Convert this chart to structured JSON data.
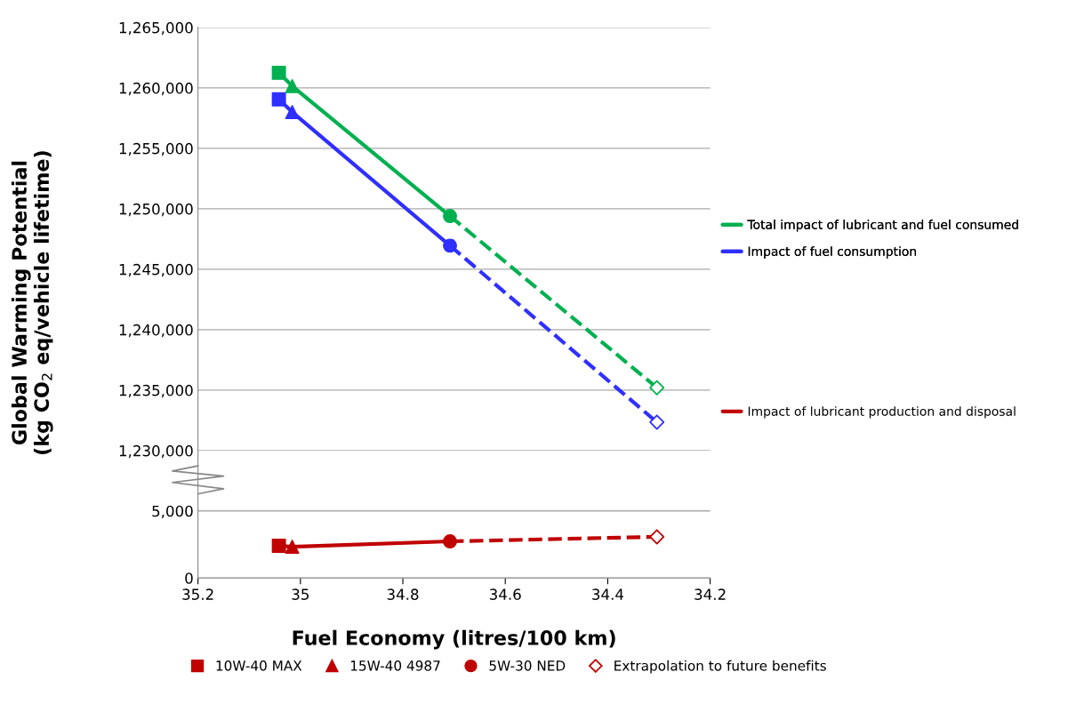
{
  "chart_data": [
    {
      "type": "line",
      "ylabel": "Global Warming Potential\n(kg CO$_{2}$ eq/vehicle lifetime)",
      "xlim": [
        35.2,
        34.2
      ],
      "xticks": [
        35.2,
        35,
        34.8,
        34.6,
        34.4,
        34.2
      ],
      "ylim": [
        1230000,
        1265000
      ],
      "yticks": [
        {
          "value": 1230000,
          "label": "1,230,000"
        },
        {
          "value": 1235000,
          "label": "1,235,000"
        },
        {
          "value": 1240000,
          "label": "1,240,000"
        },
        {
          "value": 1245000,
          "label": "1,245,000"
        },
        {
          "value": 1250000,
          "label": "1,250,000"
        },
        {
          "value": 1255000,
          "label": "1,255,000"
        },
        {
          "value": 1260000,
          "label": "1,260,000"
        },
        {
          "value": 1265000,
          "label": "1,265,000"
        }
      ],
      "tick_labels": "y",
      "grid": "y",
      "legend": "right",
      "series": [
        {
          "name": "Total impact of lubricant and fuel consumed",
          "color": "#00b050",
          "x": [
            35.042,
            35.016,
            34.708
          ],
          "values": [
            1261250,
            1260150,
            1249400
          ],
          "line_style": "solid",
          "marker": "none"
        },
        {
          "color": "#00b050",
          "x": [
            34.708,
            34.304
          ],
          "values": [
            1249400,
            1235200
          ],
          "line_style": "dashed",
          "marker": "none"
        },
        {
          "name": "Impact of fuel consumption",
          "color": "#2f2fff",
          "x": [
            35.042,
            35.016,
            34.708
          ],
          "values": [
            1259050,
            1258000,
            1246950
          ],
          "line_style": "solid",
          "marker": "none"
        },
        {
          "color": "#2f2fff",
          "x": [
            34.708,
            34.304
          ],
          "values": [
            1246950,
            1232350
          ],
          "line_style": "dashed",
          "marker": "none"
        },
        {
          "type": "scatter",
          "marker": "square",
          "x": [
            35.042,
            35.042
          ],
          "values": [
            1261250,
            1259050
          ],
          "colors": [
            "#00b050",
            "#2f2fff"
          ]
        },
        {
          "type": "scatter",
          "marker": "triangle",
          "x": [
            35.016,
            35.016
          ],
          "values": [
            1260150,
            1258000
          ],
          "colors": [
            "#00b050",
            "#2f2fff"
          ]
        },
        {
          "type": "scatter",
          "marker": "circle",
          "x": [
            34.708,
            34.708
          ],
          "values": [
            1249400,
            1246950
          ],
          "colors": [
            "#00b050",
            "#2f2fff"
          ]
        },
        {
          "type": "scatter",
          "marker": "diamond",
          "x": [
            34.304,
            34.304
          ],
          "values": [
            1235200,
            1232350
          ],
          "colors": [
            "#00b050",
            "#2f2fff"
          ]
        }
      ]
    },
    {
      "type": "line",
      "xlabel": "Fuel Economy (litres/100 km)",
      "xlim": [
        35.2,
        34.2
      ],
      "xticks": [
        35.2,
        35,
        34.8,
        34.6,
        34.4,
        34.2
      ],
      "ylim": [
        0,
        9500
      ],
      "yticks": [
        0,
        {
          "value": 5000,
          "label": "5,000"
        }
      ],
      "grid": "y",
      "legend": "right",
      "series": [
        {
          "name": "Impact of lubricant production and disposal",
          "color": "#c00000",
          "x": [
            35.042,
            35.016,
            34.708
          ],
          "values": [
            2400,
            2330,
            2730
          ],
          "line_style": "solid",
          "marker": "none"
        },
        {
          "color": "#c00000",
          "x": [
            34.708,
            34.304
          ],
          "values": [
            2730,
            3070
          ],
          "line_style": "dashed",
          "marker": "none"
        },
        {
          "type": "scatter",
          "name": "10W-40 MAX",
          "marker": "square",
          "x": [
            35.042
          ],
          "values": [
            2400
          ],
          "colors": [
            "#c00000"
          ]
        },
        {
          "type": "scatter",
          "name": "15W-40 4987",
          "marker": "triangle",
          "x": [
            35.016
          ],
          "values": [
            2330
          ],
          "colors": [
            "#c00000"
          ]
        },
        {
          "type": "scatter",
          "name": "5W-30 NED",
          "marker": "circle",
          "x": [
            34.708
          ],
          "values": [
            2730
          ],
          "colors": [
            "#c00000"
          ]
        },
        {
          "type": "scatter",
          "name": "Extrapolation to future benefits",
          "marker": "diamond",
          "x": [
            34.304
          ],
          "values": [
            3070
          ],
          "colors": [
            "#c00000"
          ]
        }
      ]
    }
  ]
}
